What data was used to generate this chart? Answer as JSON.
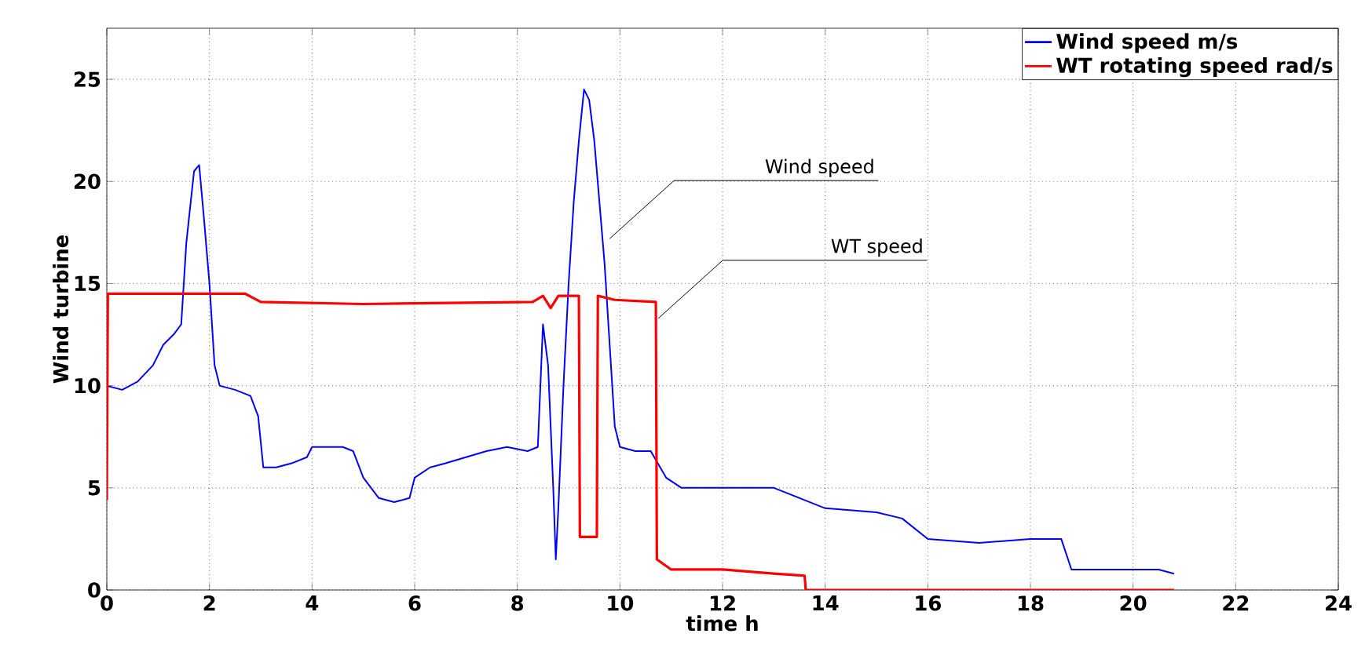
{
  "chart_data": {
    "type": "line",
    "xlabel": "time h",
    "ylabel": "Wind turbine",
    "xlim": [
      0,
      24
    ],
    "ylim": [
      0,
      27.5
    ],
    "xticks": [
      0,
      2,
      4,
      6,
      8,
      10,
      12,
      14,
      16,
      18,
      20,
      22,
      24
    ],
    "yticks": [
      0,
      5,
      10,
      15,
      20,
      25
    ],
    "grid": true,
    "legend": "top right",
    "marker": "none",
    "line_style": "solid",
    "series": [
      {
        "name": "Wind speed m/s",
        "color": "#0000ff",
        "x": [
          0,
          0.3,
          0.6,
          0.9,
          1.1,
          1.3,
          1.45,
          1.55,
          1.7,
          1.8,
          1.9,
          2.0,
          2.1,
          2.2,
          2.5,
          2.8,
          2.95,
          3.05,
          3.3,
          3.6,
          3.9,
          4.0,
          4.3,
          4.6,
          4.8,
          5.0,
          5.3,
          5.6,
          5.9,
          6.0,
          6.3,
          6.6,
          7.0,
          7.4,
          7.8,
          8.2,
          8.4,
          8.45,
          8.5,
          8.6,
          8.7,
          8.75,
          8.8,
          8.9,
          9.0,
          9.1,
          9.2,
          9.3,
          9.4,
          9.5,
          9.6,
          9.7,
          9.8,
          9.9,
          10.0,
          10.3,
          10.6,
          10.9,
          11.2,
          12,
          13,
          13.5,
          14,
          15,
          15.5,
          16,
          17,
          18,
          18.6,
          18.8,
          19.5,
          20.5,
          20.8
        ],
        "values": [
          10,
          9.8,
          10.2,
          11,
          12,
          12.5,
          13,
          17,
          20.5,
          20.8,
          18,
          15,
          11,
          10,
          9.8,
          9.5,
          8.5,
          6,
          6,
          6.2,
          6.5,
          7,
          7,
          7,
          6.8,
          5.5,
          4.5,
          4.3,
          4.5,
          5.5,
          6,
          6.2,
          6.5,
          6.8,
          7,
          6.8,
          7,
          10,
          13,
          11,
          5,
          1.5,
          4,
          10,
          15,
          19,
          22,
          24.5,
          24,
          22,
          19,
          16,
          12,
          8,
          7,
          6.8,
          6.8,
          5.5,
          5,
          5,
          5,
          4.5,
          4,
          3.8,
          3.5,
          2.5,
          2.3,
          2.5,
          2.5,
          1,
          1,
          1,
          0.8
        ]
      },
      {
        "name": "WT rotating speed rad/s",
        "color": "#ff0000",
        "x": [
          0,
          0.02,
          2.7,
          3.0,
          5,
          8.3,
          8.5,
          8.65,
          8.8,
          9.2,
          9.22,
          9.55,
          9.57,
          9.9,
          10.7,
          10.72,
          11,
          12,
          13,
          13.6,
          13.62,
          20.8
        ],
        "values": [
          4.4,
          14.5,
          14.5,
          14.1,
          14,
          14.1,
          14.4,
          13.8,
          14.4,
          14.4,
          2.6,
          2.6,
          14.4,
          14.2,
          14.1,
          1.5,
          1,
          1,
          0.8,
          0.7,
          0,
          0
        ]
      }
    ],
    "annotations": [
      {
        "text": "Wind speed",
        "x": 9.8,
        "y": 17.2
      },
      {
        "text": "WT speed",
        "x": 10.75,
        "y": 13.3
      }
    ]
  }
}
